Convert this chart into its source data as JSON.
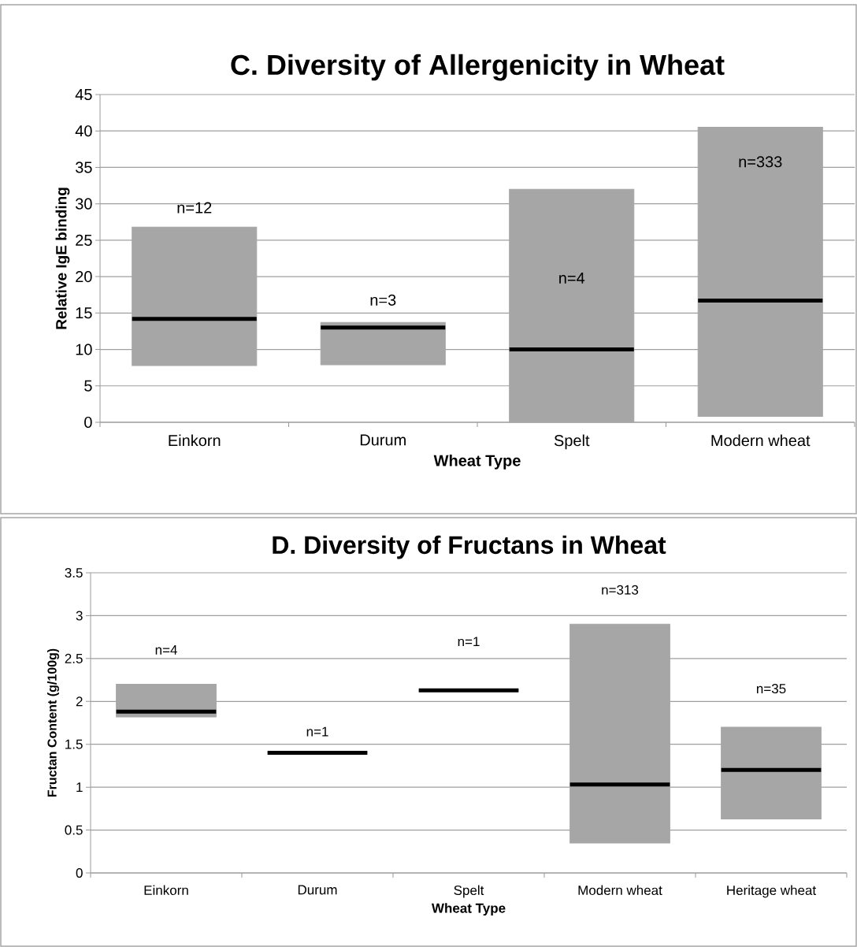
{
  "chart_data": [
    {
      "type": "box",
      "title": "C. Diversity of Allergenicity in Wheat",
      "xlabel": "Wheat Type",
      "ylabel": "Relative IgE binding",
      "categories": [
        "Einkorn",
        "Durum",
        "Spelt",
        "Modern wheat"
      ],
      "boxes": [
        {
          "low": 7.8,
          "q1": 7.8,
          "median": 14.2,
          "q3": 26.8,
          "high": 26.8
        },
        {
          "low": 7.9,
          "q1": 7.9,
          "median": 13,
          "q3": 13.7,
          "high": 13.7
        },
        {
          "low": 0,
          "q1": 0,
          "median": 10,
          "q3": 32,
          "high": 32
        },
        {
          "low": 0.8,
          "q1": 0.8,
          "median": 16.7,
          "q3": 40.5,
          "high": 40.5
        }
      ],
      "color": "#a6a6a6",
      "ylim": [
        0,
        45
      ],
      "yticks": [
        0,
        5,
        10,
        15,
        20,
        25,
        30,
        35,
        40,
        45
      ],
      "grid": "y",
      "annotations": [
        "n=12",
        "n=3",
        "n=4",
        "n=333"
      ]
    },
    {
      "type": "box",
      "title": "D. Diversity of Fructans in Wheat",
      "xlabel": "Wheat Type",
      "ylabel": "Fructan Content (g/100g)",
      "categories": [
        "Einkorn",
        "Durum",
        "Spelt",
        "Modern wheat",
        "Heritage wheat"
      ],
      "boxes": [
        {
          "low": 1.82,
          "q1": 1.82,
          "median": 1.88,
          "q3": 2.2,
          "high": 2.2
        },
        {
          "low": 1.4,
          "q1": 1.4,
          "median": 1.4,
          "q3": 1.4,
          "high": 1.4
        },
        {
          "low": 2.13,
          "q1": 2.13,
          "median": 2.13,
          "q3": 2.13,
          "high": 2.13
        },
        {
          "low": 0.35,
          "q1": 0.35,
          "median": 1.03,
          "q3": 2.9,
          "high": 2.9
        },
        {
          "low": 0.63,
          "q1": 0.63,
          "median": 1.2,
          "q3": 1.7,
          "high": 1.7
        }
      ],
      "color": "#a6a6a6",
      "ylim": [
        0,
        3.5
      ],
      "yticks": [
        0,
        0.5,
        1,
        1.5,
        2,
        2.5,
        3,
        3.5
      ],
      "grid": "y",
      "annotations": [
        "n=4",
        "n=1",
        "n=1",
        "n=313",
        "n=35"
      ]
    }
  ]
}
